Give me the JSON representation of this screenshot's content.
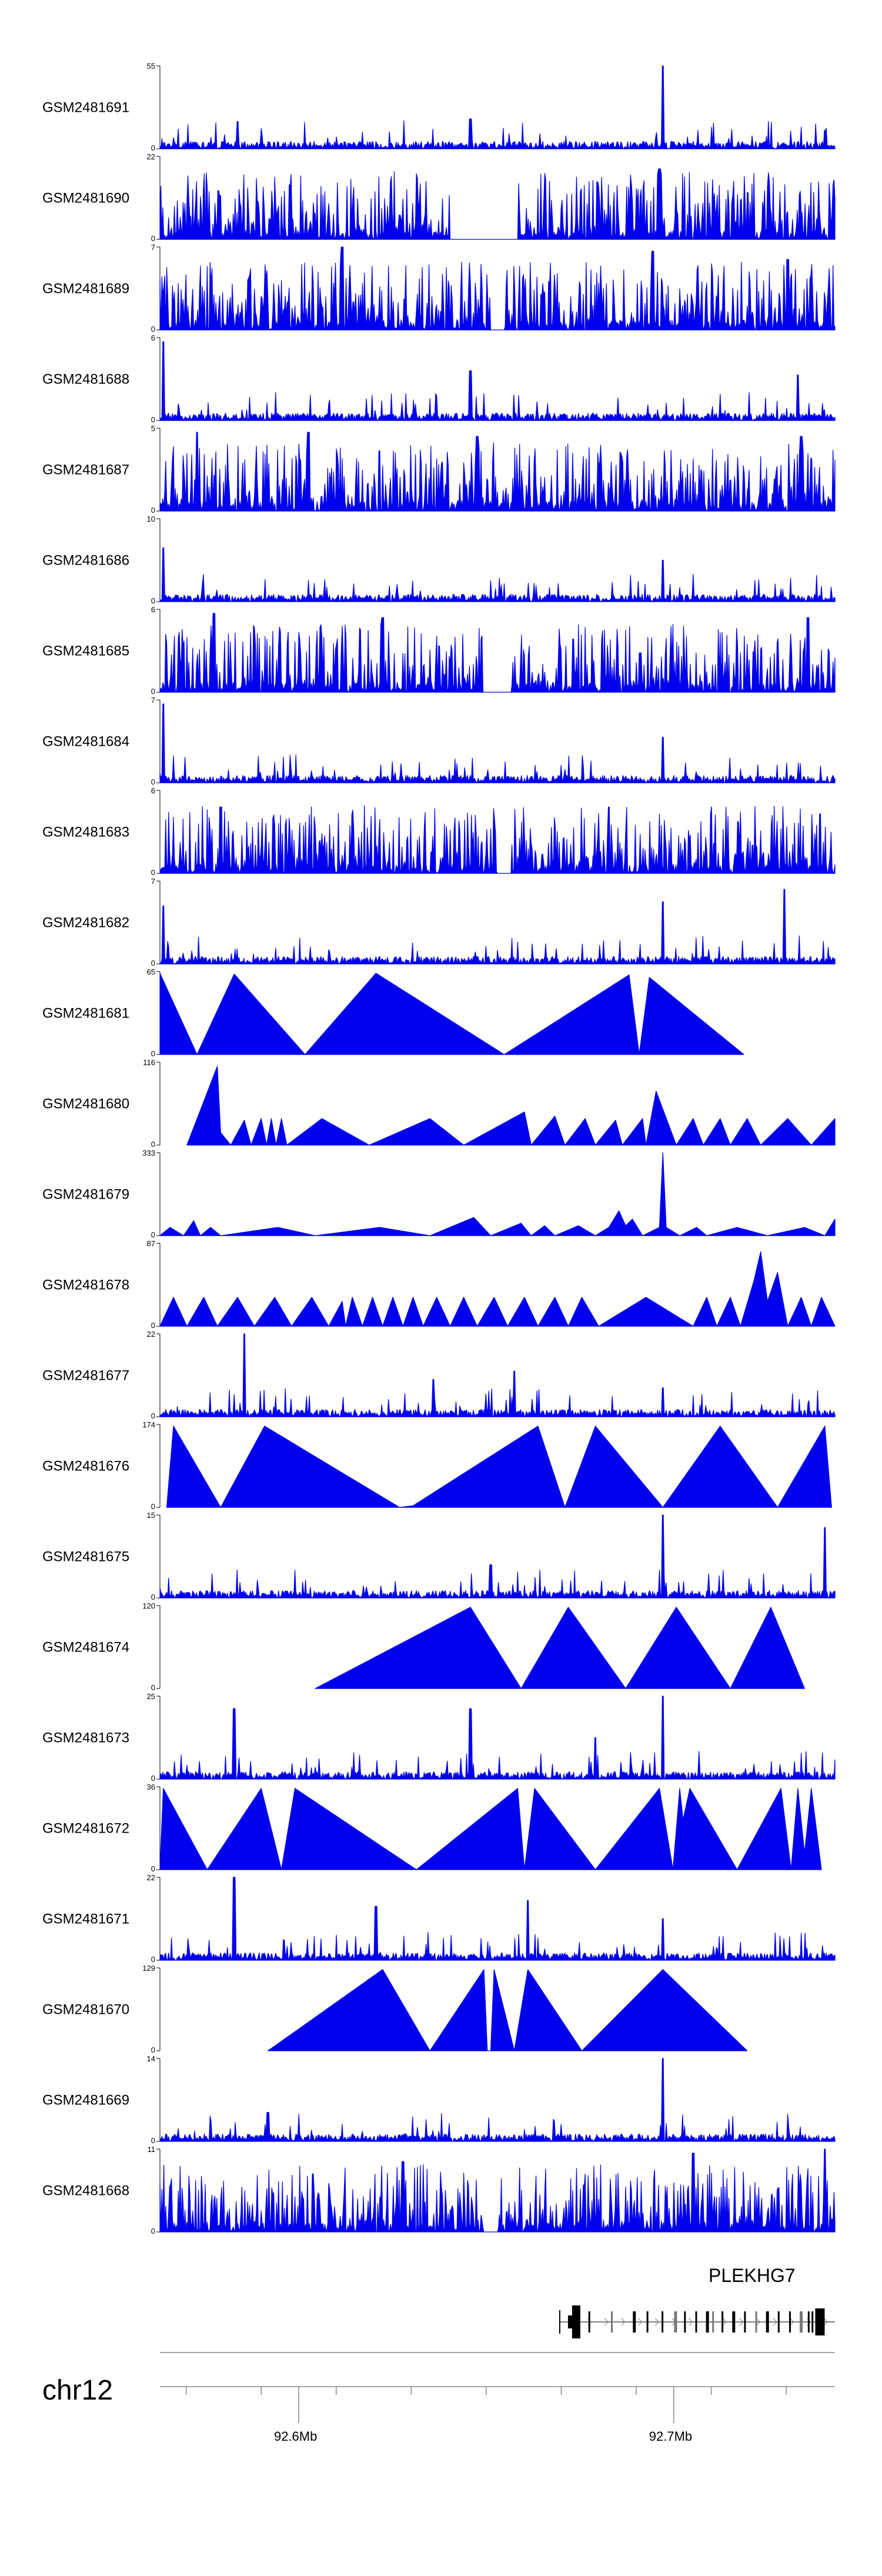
{
  "chart_data": {
    "type": "area",
    "title": "",
    "chromosome": "chr12",
    "genome_axis": {
      "range_mb": [
        92.563,
        92.743
      ],
      "ticks_mb": [
        92.57,
        92.59,
        92.61,
        92.63,
        92.65,
        92.67,
        92.69,
        92.71,
        92.73
      ],
      "tick_labels": [
        {
          "mb": 92.6,
          "label": "92.6Mb"
        },
        {
          "mb": 92.7,
          "label": "92.7Mb"
        }
      ]
    },
    "gene": {
      "name": "PLEKHG7",
      "start_mb": 92.674,
      "end_mb": 92.743,
      "strand": "+",
      "exons_mb": [
        92.674,
        92.6775,
        92.6835,
        92.6895,
        92.693,
        92.697,
        92.7005,
        92.703,
        92.706,
        92.709,
        92.7105,
        92.713,
        92.716,
        92.719,
        92.722,
        92.725,
        92.728,
        92.731,
        92.734,
        92.736,
        92.737,
        92.739
      ]
    },
    "series": [
      {
        "name": "GSM2481691",
        "ymax": "55",
        "ymin": "0",
        "style": "noise",
        "peaks": [
          [
            0.115,
            0.33
          ],
          [
            0.46,
            0.36
          ],
          [
            0.745,
            1.0
          ],
          [
            0.985,
            0.22
          ]
        ]
      },
      {
        "name": "GSM2481690",
        "ymax": "22",
        "ymin": "0",
        "style": "dense",
        "gaps": [
          [
            0.43,
            0.53
          ]
        ],
        "peaks": [
          [
            0.74,
            0.85
          ]
        ]
      },
      {
        "name": "GSM2481689",
        "ymax": "7",
        "ymin": "0",
        "style": "dense",
        "gaps": [
          [
            0.49,
            0.51
          ]
        ],
        "peaks": [
          [
            0.27,
            1.0
          ],
          [
            0.73,
            0.95
          ],
          [
            0.93,
            0.85
          ]
        ]
      },
      {
        "name": "GSM2481688",
        "ymax": "6",
        "ymin": "0",
        "style": "noise",
        "peaks": [
          [
            0.005,
            0.95
          ],
          [
            0.46,
            0.6
          ],
          [
            0.945,
            0.55
          ]
        ]
      },
      {
        "name": "GSM2481687",
        "ymax": "5",
        "ymin": "0",
        "style": "dense",
        "gaps": [],
        "peaks": [
          [
            0.055,
            0.95
          ],
          [
            0.22,
            0.95
          ],
          [
            0.47,
            0.9
          ],
          [
            0.95,
            0.9
          ]
        ]
      },
      {
        "name": "GSM2481686",
        "ymax": "10",
        "ymin": "0",
        "style": "noise",
        "peaks": [
          [
            0.005,
            0.65
          ],
          [
            0.745,
            0.5
          ]
        ]
      },
      {
        "name": "GSM2481685",
        "ymax": "6",
        "ymin": "0",
        "style": "dense",
        "gaps": [
          [
            0.48,
            0.52
          ]
        ],
        "peaks": [
          [
            0.08,
            0.95
          ],
          [
            0.33,
            0.9
          ],
          [
            0.96,
            0.9
          ]
        ]
      },
      {
        "name": "GSM2481684",
        "ymax": "7",
        "ymin": "0",
        "style": "noise",
        "peaks": [
          [
            0.005,
            0.95
          ],
          [
            0.745,
            0.55
          ]
        ]
      },
      {
        "name": "GSM2481683",
        "ymax": "6",
        "ymin": "0",
        "style": "dense",
        "gaps": [
          [
            0.5,
            0.52
          ]
        ],
        "peaks": [
          [
            0.09,
            0.8
          ],
          [
            0.665,
            0.8
          ]
        ]
      },
      {
        "name": "GSM2481682",
        "ymax": "7",
        "ymin": "0",
        "style": "noise",
        "peaks": [
          [
            0.005,
            0.7
          ],
          [
            0.745,
            0.75
          ],
          [
            0.925,
            0.9
          ]
        ]
      },
      {
        "name": "GSM2481681",
        "ymax": "65",
        "ymin": "0",
        "style": "segments",
        "points": [
          [
            0,
            0.98
          ],
          [
            0.055,
            0
          ],
          [
            0.11,
            0.97
          ],
          [
            0.215,
            0
          ],
          [
            0.32,
            0.98
          ],
          [
            0.51,
            0
          ],
          [
            0.695,
            0.96
          ],
          [
            0.71,
            0
          ],
          [
            0.725,
            0.93
          ],
          [
            0.865,
            0
          ]
        ]
      },
      {
        "name": "GSM2481680",
        "ymax": "116",
        "ymin": "0",
        "style": "segments",
        "points": [
          [
            0.04,
            0
          ],
          [
            0.085,
            0.95
          ],
          [
            0.09,
            0.15
          ],
          [
            0.105,
            0
          ],
          [
            0.125,
            0.3
          ],
          [
            0.135,
            0
          ],
          [
            0.15,
            0.32
          ],
          [
            0.158,
            0
          ],
          [
            0.165,
            0.32
          ],
          [
            0.172,
            0
          ],
          [
            0.18,
            0.32
          ],
          [
            0.188,
            0
          ],
          [
            0.24,
            0.32
          ],
          [
            0.31,
            0
          ],
          [
            0.4,
            0.32
          ],
          [
            0.45,
            0
          ],
          [
            0.54,
            0.4
          ],
          [
            0.55,
            0
          ],
          [
            0.585,
            0.35
          ],
          [
            0.6,
            0
          ],
          [
            0.63,
            0.32
          ],
          [
            0.645,
            0
          ],
          [
            0.675,
            0.3
          ],
          [
            0.685,
            0
          ],
          [
            0.715,
            0.32
          ],
          [
            0.72,
            0
          ],
          [
            0.735,
            0.65
          ],
          [
            0.765,
            0
          ],
          [
            0.79,
            0.32
          ],
          [
            0.805,
            0
          ],
          [
            0.83,
            0.32
          ],
          [
            0.845,
            0
          ],
          [
            0.87,
            0.32
          ],
          [
            0.89,
            0
          ],
          [
            0.93,
            0.32
          ],
          [
            0.965,
            0
          ],
          [
            1.0,
            0.32
          ]
        ]
      },
      {
        "name": "GSM2481679",
        "ymax": "333",
        "ymin": "0",
        "style": "segments",
        "points": [
          [
            0,
            0
          ],
          [
            0.015,
            0.1
          ],
          [
            0.035,
            0
          ],
          [
            0.05,
            0.18
          ],
          [
            0.06,
            0
          ],
          [
            0.075,
            0.1
          ],
          [
            0.09,
            0
          ],
          [
            0.175,
            0.1
          ],
          [
            0.23,
            0
          ],
          [
            0.325,
            0.1
          ],
          [
            0.4,
            0
          ],
          [
            0.465,
            0.22
          ],
          [
            0.49,
            0
          ],
          [
            0.535,
            0.15
          ],
          [
            0.55,
            0
          ],
          [
            0.57,
            0.12
          ],
          [
            0.585,
            0
          ],
          [
            0.62,
            0.12
          ],
          [
            0.645,
            0
          ],
          [
            0.665,
            0.1
          ],
          [
            0.68,
            0.3
          ],
          [
            0.69,
            0.12
          ],
          [
            0.7,
            0.2
          ],
          [
            0.715,
            0
          ],
          [
            0.74,
            0.1
          ],
          [
            0.745,
            1.0
          ],
          [
            0.75,
            0.1
          ],
          [
            0.77,
            0
          ],
          [
            0.795,
            0.1
          ],
          [
            0.81,
            0
          ],
          [
            0.855,
            0.1
          ],
          [
            0.9,
            0
          ],
          [
            0.955,
            0.1
          ],
          [
            0.985,
            0
          ],
          [
            1.0,
            0.2
          ]
        ]
      },
      {
        "name": "GSM2481678",
        "ymax": "87",
        "ymin": "0",
        "style": "segments",
        "points": [
          [
            0,
            0
          ],
          [
            0.02,
            0.35
          ],
          [
            0.04,
            0
          ],
          [
            0.065,
            0.35
          ],
          [
            0.085,
            0
          ],
          [
            0.115,
            0.35
          ],
          [
            0.14,
            0
          ],
          [
            0.17,
            0.35
          ],
          [
            0.195,
            0
          ],
          [
            0.225,
            0.35
          ],
          [
            0.25,
            0
          ],
          [
            0.27,
            0.3
          ],
          [
            0.275,
            0
          ],
          [
            0.285,
            0.35
          ],
          [
            0.3,
            0
          ],
          [
            0.315,
            0.35
          ],
          [
            0.33,
            0
          ],
          [
            0.345,
            0.35
          ],
          [
            0.36,
            0
          ],
          [
            0.375,
            0.35
          ],
          [
            0.39,
            0
          ],
          [
            0.41,
            0.35
          ],
          [
            0.43,
            0
          ],
          [
            0.45,
            0.35
          ],
          [
            0.47,
            0
          ],
          [
            0.495,
            0.35
          ],
          [
            0.515,
            0
          ],
          [
            0.54,
            0.35
          ],
          [
            0.56,
            0
          ],
          [
            0.585,
            0.35
          ],
          [
            0.605,
            0
          ],
          [
            0.625,
            0.35
          ],
          [
            0.65,
            0
          ],
          [
            0.72,
            0.35
          ],
          [
            0.79,
            0
          ],
          [
            0.81,
            0.35
          ],
          [
            0.825,
            0
          ],
          [
            0.845,
            0.35
          ],
          [
            0.86,
            0
          ],
          [
            0.88,
            0.55
          ],
          [
            0.89,
            0.9
          ],
          [
            0.9,
            0.3
          ],
          [
            0.915,
            0.65
          ],
          [
            0.93,
            0
          ],
          [
            0.95,
            0.35
          ],
          [
            0.965,
            0
          ],
          [
            0.98,
            0.35
          ],
          [
            1.0,
            0
          ]
        ]
      },
      {
        "name": "GSM2481677",
        "ymax": "22",
        "ymin": "0",
        "style": "noise",
        "peaks": [
          [
            0.125,
            1.0
          ],
          [
            0.405,
            0.45
          ],
          [
            0.525,
            0.55
          ],
          [
            0.745,
            0.35
          ]
        ]
      },
      {
        "name": "GSM2481676",
        "ymax": "174",
        "ymin": "0",
        "style": "segments",
        "points": [
          [
            0.01,
            0
          ],
          [
            0.02,
            0.98
          ],
          [
            0.09,
            0
          ],
          [
            0.155,
            0.98
          ],
          [
            0.355,
            0
          ],
          [
            0.375,
            0.02
          ],
          [
            0.56,
            0.98
          ],
          [
            0.6,
            0
          ],
          [
            0.645,
            0.98
          ],
          [
            0.745,
            0
          ],
          [
            0.83,
            0.98
          ],
          [
            0.915,
            0
          ],
          [
            0.985,
            0.98
          ],
          [
            0.995,
            0
          ]
        ]
      },
      {
        "name": "GSM2481675",
        "ymax": "15",
        "ymin": "0",
        "style": "noise",
        "peaks": [
          [
            0.745,
            1.0
          ],
          [
            0.985,
            0.85
          ],
          [
            0.49,
            0.4
          ]
        ]
      },
      {
        "name": "GSM2481674",
        "ymax": "120",
        "ymin": "0",
        "style": "segments",
        "points": [
          [
            0.23,
            0
          ],
          [
            0.46,
            0.98
          ],
          [
            0.535,
            0
          ],
          [
            0.605,
            0.98
          ],
          [
            0.69,
            0
          ],
          [
            0.765,
            0.98
          ],
          [
            0.845,
            0
          ],
          [
            0.905,
            0.98
          ],
          [
            0.955,
            0
          ]
        ]
      },
      {
        "name": "GSM2481673",
        "ymax": "25",
        "ymin": "0",
        "style": "noise",
        "peaks": [
          [
            0.11,
            0.85
          ],
          [
            0.46,
            0.85
          ],
          [
            0.645,
            0.5
          ],
          [
            0.745,
            1.0
          ]
        ]
      },
      {
        "name": "GSM2481672",
        "ymax": "36",
        "ymin": "0",
        "style": "segments",
        "points": [
          [
            0,
            0
          ],
          [
            0.005,
            0.98
          ],
          [
            0.07,
            0
          ],
          [
            0.15,
            0.98
          ],
          [
            0.18,
            0
          ],
          [
            0.2,
            0.98
          ],
          [
            0.38,
            0
          ],
          [
            0.53,
            0.98
          ],
          [
            0.54,
            0
          ],
          [
            0.555,
            0.98
          ],
          [
            0.645,
            0
          ],
          [
            0.74,
            0.98
          ],
          [
            0.76,
            0
          ],
          [
            0.77,
            0.98
          ],
          [
            0.775,
            0.6
          ],
          [
            0.785,
            0.98
          ],
          [
            0.855,
            0
          ],
          [
            0.92,
            0.98
          ],
          [
            0.935,
            0
          ],
          [
            0.945,
            0.98
          ],
          [
            0.955,
            0.2
          ],
          [
            0.965,
            0.98
          ],
          [
            0.98,
            0
          ]
        ]
      },
      {
        "name": "GSM2481671",
        "ymax": "22",
        "ymin": "0",
        "style": "noise",
        "peaks": [
          [
            0.11,
            1.0
          ],
          [
            0.32,
            0.65
          ],
          [
            0.545,
            0.72
          ],
          [
            0.745,
            0.5
          ]
        ]
      },
      {
        "name": "GSM2481670",
        "ymax": "129",
        "ymin": "0",
        "style": "segments",
        "points": [
          [
            0.16,
            0
          ],
          [
            0.33,
            0.98
          ],
          [
            0.4,
            0
          ],
          [
            0.48,
            0.98
          ],
          [
            0.485,
            0
          ],
          [
            0.49,
            0
          ],
          [
            0.495,
            0.98
          ],
          [
            0.525,
            0
          ],
          [
            0.545,
            0.98
          ],
          [
            0.625,
            0
          ],
          [
            0.745,
            0.98
          ],
          [
            0.87,
            0
          ]
        ]
      },
      {
        "name": "GSM2481669",
        "ymax": "14",
        "ymin": "0",
        "style": "noise",
        "peaks": [
          [
            0.745,
            1.0
          ],
          [
            0.16,
            0.35
          ]
        ]
      },
      {
        "name": "GSM2481668",
        "ymax": "11",
        "ymin": "0",
        "style": "dense",
        "gaps": [
          [
            0.48,
            0.5
          ]
        ],
        "peaks": [
          [
            0.79,
            0.95
          ],
          [
            0.985,
            1.0
          ],
          [
            0.36,
            0.85
          ]
        ]
      }
    ]
  }
}
